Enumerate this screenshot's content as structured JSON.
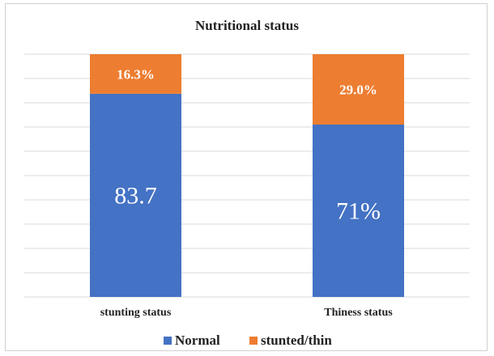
{
  "chart_data": {
    "type": "bar",
    "stacked": true,
    "title": "Nutritional status",
    "categories": [
      "stunting status",
      "Thiness status"
    ],
    "series": [
      {
        "name": "Normal",
        "values": [
          83.7,
          71
        ],
        "labels": [
          "83.7",
          "71%"
        ],
        "color": "#4472c4"
      },
      {
        "name": "stunted/thin",
        "values": [
          16.3,
          29.0
        ],
        "labels": [
          "16.3%",
          "29.0%"
        ],
        "color": "#ed7d31"
      }
    ],
    "ylim": [
      0,
      100
    ],
    "grid": true,
    "legend": "bottom"
  }
}
